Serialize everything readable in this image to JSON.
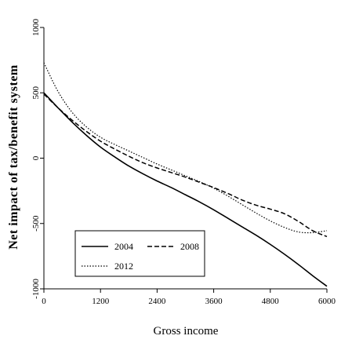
{
  "chart_data": {
    "type": "line",
    "title": "",
    "xlabel": "Gross income",
    "ylabel": "Net impact of tax/benefit system",
    "xlim": [
      0,
      6000
    ],
    "ylim": [
      -1000,
      1000
    ],
    "xticks": [
      0,
      1200,
      2400,
      3600,
      4800,
      6000
    ],
    "xtick_labels": [
      "0",
      "1200",
      "2400",
      "3600",
      "4800",
      "6000"
    ],
    "yticks": [
      -1000,
      -500,
      0,
      500,
      1000
    ],
    "ytick_labels": [
      "-1000",
      "-500",
      "0",
      "500",
      "1000"
    ],
    "grid": false,
    "legend_position": "bottom-left",
    "series": [
      {
        "name": "2004",
        "style": "solid",
        "x": [
          0,
          300,
          600,
          900,
          1200,
          1500,
          1800,
          2100,
          2400,
          2700,
          3000,
          3300,
          3600,
          3900,
          4200,
          4500,
          4800,
          5100,
          5400,
          5700,
          6000
        ],
        "y": [
          500,
          385,
          275,
          175,
          85,
          10,
          -60,
          -120,
          -175,
          -225,
          -280,
          -335,
          -395,
          -460,
          -525,
          -590,
          -660,
          -735,
          -815,
          -900,
          -980
        ]
      },
      {
        "name": "2008",
        "style": "dashed",
        "x": [
          0,
          300,
          600,
          900,
          1200,
          1500,
          1800,
          2100,
          2400,
          2700,
          3000,
          3300,
          3600,
          3900,
          4200,
          4500,
          4800,
          5100,
          5400,
          5700,
          6000
        ],
        "y": [
          490,
          385,
          290,
          205,
          130,
          70,
          15,
          -35,
          -75,
          -110,
          -145,
          -185,
          -225,
          -270,
          -320,
          -360,
          -390,
          -425,
          -485,
          -555,
          -600
        ]
      },
      {
        "name": "2012",
        "style": "dotted",
        "x": [
          0,
          300,
          600,
          900,
          1200,
          1500,
          1800,
          2100,
          2400,
          2700,
          3000,
          3300,
          3600,
          3900,
          4200,
          4500,
          4800,
          5100,
          5400,
          5700,
          6000
        ],
        "y": [
          730,
          510,
          350,
          240,
          160,
          105,
          55,
          5,
          -45,
          -90,
          -135,
          -180,
          -230,
          -290,
          -355,
          -420,
          -480,
          -530,
          -565,
          -570,
          -555
        ]
      }
    ]
  },
  "legend": {
    "items": [
      {
        "label": "2004",
        "style": "solid"
      },
      {
        "label": "2008",
        "style": "dashed"
      },
      {
        "label": "2012",
        "style": "dotted"
      }
    ]
  },
  "colors": {
    "line": "#000000",
    "background": "#ffffff"
  }
}
